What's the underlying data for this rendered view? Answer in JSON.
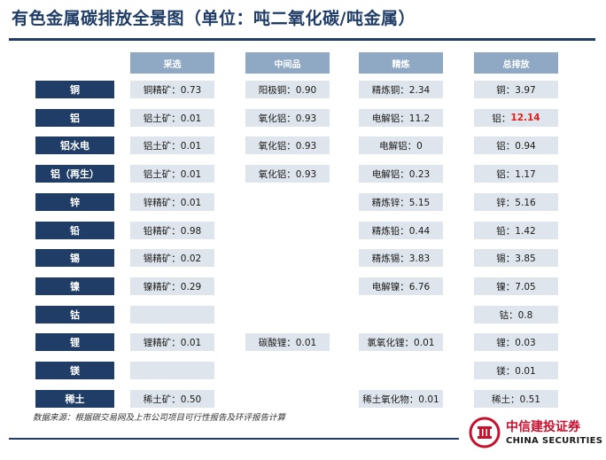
{
  "title": "有色金属碳排放全景图（单位：吨二氧化碳/吨金属）",
  "headers": {
    "mining": "采选",
    "intermediate": "中间品",
    "refining": "精炼",
    "total": "总排放"
  },
  "rows": [
    {
      "label": "铜",
      "mining": "铜精矿：0.73",
      "intermediate": "阳极铜：0.90",
      "refining": "精炼铜：2.34",
      "total": "铜：3.97"
    },
    {
      "label": "铝",
      "mining": "铝土矿：0.01",
      "intermediate": "氧化铝：0.93",
      "refining": "电解铝：11.2",
      "total_prefix": "铝：",
      "total_value": "12.14"
    },
    {
      "label": "铝水电",
      "mining": "铝土矿：0.01",
      "intermediate": "氧化铝：0.93",
      "refining": "电解铝：0",
      "total": "铝：0.94"
    },
    {
      "label": "铝（再生）",
      "mining": "铝土矿：0.01",
      "intermediate": "氧化铝：0.93",
      "refining": "电解铝：0.23",
      "total": "铝：1.17"
    },
    {
      "label": "锌",
      "mining": "锌精矿：0.01",
      "intermediate": "",
      "refining": "精炼锌：5.15",
      "total": "锌：5.16"
    },
    {
      "label": "铅",
      "mining": "铅精矿：0.98",
      "intermediate": "",
      "refining": "精炼铅：0.44",
      "total": "铅：1.42"
    },
    {
      "label": "锡",
      "mining": "锡精矿：0.02",
      "intermediate": "",
      "refining": "精炼锡：3.83",
      "total": "锡：3.85"
    },
    {
      "label": "镍",
      "mining": "镍精矿：0.29",
      "intermediate": "",
      "refining": "电解镍：6.76",
      "total": "镍：7.05"
    },
    {
      "label": "钴",
      "mining": "",
      "intermediate": "",
      "refining": "",
      "total": "钴：0.8"
    },
    {
      "label": "锂",
      "mining": "锂精矿：0.01",
      "intermediate": "碳酸锂：0.01",
      "refining": "氯氧化锂：0.01",
      "total": "锂：0.03"
    },
    {
      "label": "镁",
      "mining": "",
      "intermediate": "",
      "refining": "",
      "total": "镁：0.01"
    },
    {
      "label": "稀土",
      "mining": "稀土矿：0.50",
      "intermediate": "",
      "refining": "稀土氧化物：0.01",
      "total": "稀土：0.51"
    }
  ],
  "colors": {
    "navy": "#1f3d66",
    "header": "#8fa9c4",
    "cell": "#dfe5ed",
    "highlight": "#e0201b",
    "brand_red": "#c8102e"
  },
  "source": "数据来源：根据碳交易网及上市公司项目可行性报告及环评报告计算",
  "logo": {
    "cn": "中信建投证券",
    "en": "CHINA SECURITIES"
  }
}
